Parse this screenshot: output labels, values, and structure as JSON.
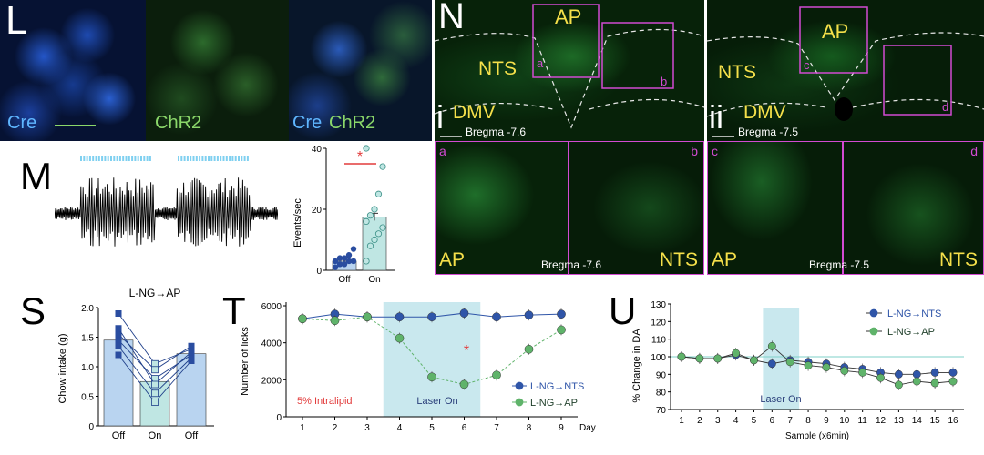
{
  "colors": {
    "cre_blue": "#2b5fd6",
    "chr2_green": "#35d35a",
    "overlay_text_blue": "#5fb6ff",
    "overlay_text_green": "#8bd86a",
    "label_yellow": "#f5e04a",
    "label_white": "#ffffff",
    "box_magenta": "#d24bd2",
    "laser_band": "#c9e8ee",
    "laser_tick": "#7fd0f0",
    "red_star": "#e23b3b",
    "series_blue": "#2f55a8",
    "series_green": "#5fb36a",
    "bar_blue": "#b9d4f0",
    "bar_teal": "#bfe6e3",
    "marker_dark_blue": "#2a4da0",
    "marker_teal": "#6ac1b5",
    "baseline_teal": "#7fd0c8"
  },
  "panel_L": {
    "letter": "L",
    "label_cre": "Cre",
    "label_chr2": "ChR2",
    "label_merge_cre": "Cre",
    "label_merge_chr2": "ChR2"
  },
  "panel_M": {
    "letter": "M",
    "star": "*",
    "chart_data": {
      "type": "bar",
      "categories": [
        "Off",
        "On"
      ],
      "ylabel": "Events/sec",
      "ylim": [
        0,
        40
      ],
      "yticks": [
        0,
        20,
        40
      ],
      "means": [
        3,
        17.5
      ],
      "points_off": [
        1,
        2,
        2,
        3,
        3,
        3,
        4,
        4,
        5,
        7
      ],
      "points_on": [
        3,
        8,
        10,
        12,
        14,
        16,
        18,
        20,
        25,
        34,
        40
      ]
    }
  },
  "panel_N": {
    "letter": "N",
    "sub_i": "i",
    "sub_ii": "ii",
    "AP": "AP",
    "NTS": "NTS",
    "DMV": "DMV",
    "bregma_i": "Bregma -7.6",
    "bregma_ii": "Bregma -7.5",
    "zoom_a": "a",
    "zoom_b": "b",
    "zoom_c": "c",
    "zoom_d": "d",
    "zoom_left_AP": "AP",
    "zoom_left_NTS": "NTS",
    "zoom_left_bregma": "Bregma -7.6",
    "zoom_right_AP": "AP",
    "zoom_right_NTS": "NTS",
    "zoom_right_bregma": "Bregma -7.5"
  },
  "panel_S": {
    "letter": "S",
    "chart_data": {
      "type": "bar",
      "title": "L-NG→AP",
      "categories": [
        "Off",
        "On",
        "Off"
      ],
      "ylabel": "Chow intake (g)",
      "ylim": [
        0,
        2.0
      ],
      "yticks": [
        0,
        0.5,
        1.0,
        1.5,
        2.0
      ],
      "means": [
        1.45,
        0.75,
        1.22
      ],
      "subjects": [
        [
          1.9,
          1.05,
          1.3
        ],
        [
          1.55,
          0.95,
          1.35
        ],
        [
          1.45,
          0.8,
          1.2
        ],
        [
          1.35,
          0.55,
          1.15
        ],
        [
          1.2,
          0.4,
          1.1
        ],
        [
          1.65,
          0.7,
          1.25
        ]
      ]
    }
  },
  "panel_T": {
    "letter": "T",
    "intralipid_label": "5% Intralipid",
    "laser_label": "Laser On",
    "star": "*",
    "chart_data": {
      "type": "line",
      "x": [
        1,
        2,
        3,
        4,
        5,
        6,
        7,
        8,
        9
      ],
      "xlabel": "Day",
      "ylabel": "Number of licks",
      "ylim": [
        0,
        6000
      ],
      "yticks": [
        0,
        2000,
        4000,
        6000
      ],
      "laser_range": [
        3.5,
        6.5
      ],
      "series": [
        {
          "name": "L-NG→NTS",
          "values": [
            5300,
            5550,
            5400,
            5400,
            5400,
            5600,
            5400,
            5500,
            5550
          ]
        },
        {
          "name": "L-NG→AP",
          "values": [
            5300,
            5200,
            5400,
            4250,
            2150,
            1750,
            2250,
            3650,
            4700
          ]
        }
      ]
    }
  },
  "panel_U": {
    "letter": "U",
    "laser_label": "Laser On",
    "chart_data": {
      "type": "line",
      "x": [
        1,
        2,
        3,
        4,
        5,
        6,
        7,
        8,
        9,
        10,
        11,
        12,
        13,
        14,
        15,
        16
      ],
      "xlabel": "Sample (x6min)",
      "ylabel": "% Change in DA",
      "ylim": [
        70,
        130
      ],
      "yticks": [
        70,
        80,
        90,
        100,
        110,
        120,
        130
      ],
      "laser_range": [
        5.5,
        7.5
      ],
      "series": [
        {
          "name": "L-NG→NTS",
          "values": [
            100,
            99,
            99,
            101,
            98,
            96,
            98,
            97,
            96,
            94,
            93,
            91,
            90,
            90,
            91,
            91
          ]
        },
        {
          "name": "L-NG→AP",
          "values": [
            100,
            99,
            99,
            102,
            98,
            106,
            97,
            95,
            94,
            92,
            91,
            88,
            84,
            86,
            85,
            86
          ]
        }
      ]
    }
  }
}
